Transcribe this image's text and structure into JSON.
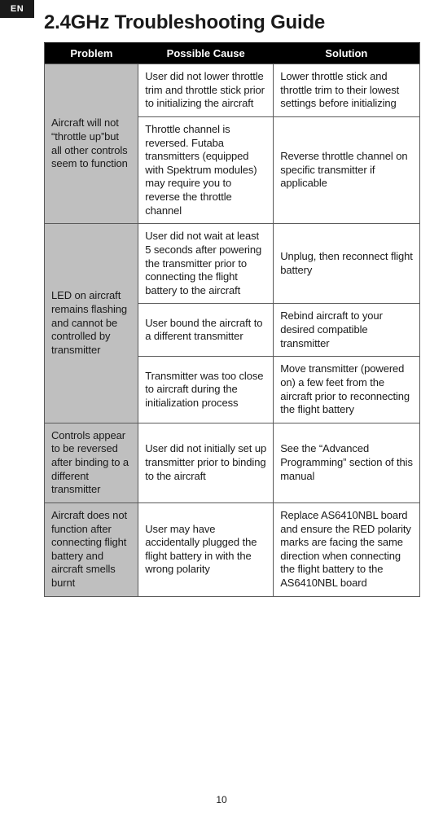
{
  "lang_tab": "EN",
  "title": "2.4GHz Troubleshooting Guide",
  "headers": {
    "problem": "Problem",
    "cause": "Possible Cause",
    "solution": "Solution"
  },
  "rows": [
    {
      "problem": "Aircraft will not “throttle up”but all other controls seem to function",
      "sub": [
        {
          "cause": "User did not lower throttle trim and throttle stick prior to initializing the aircraft",
          "solution": "Lower throttle stick and throttle trim to their lowest settings before initializing"
        },
        {
          "cause": "Throttle channel is reversed. Futaba transmitters (equipped with Spektrum modules) may require you to reverse the throttle channel",
          "solution": "Reverse throttle channel on specific transmitter if applicable"
        }
      ]
    },
    {
      "problem": "LED on aircraft remains flashing and cannot be controlled by transmitter",
      "sub": [
        {
          "cause": "User did not wait at least 5 seconds after powering the transmitter prior to connecting the flight battery to the aircraft",
          "solution": "Unplug, then reconnect flight battery"
        },
        {
          "cause": "User bound the aircraft to a different transmitter",
          "solution": "Rebind aircraft to your desired compatible transmitter"
        },
        {
          "cause": "Transmitter was too close to aircraft during the initialization process",
          "solution": "Move transmitter (powered on) a few feet from the aircraft prior to reconnecting the flight battery"
        }
      ]
    },
    {
      "problem": "Controls appear to be reversed after binding to a different transmitter",
      "sub": [
        {
          "cause": "User did not initially set up transmitter prior to binding to the aircraft",
          "solution": "See the “Advanced Programming” section of this manual"
        }
      ]
    },
    {
      "problem": "Aircraft does not function after connecting flight battery and aircraft smells burnt",
      "sub": [
        {
          "cause": "User may have accidentally plugged the flight battery in with the wrong polarity",
          "solution": "Replace AS6410NBL board and ensure the RED polarity marks are facing the same direction when connecting the flight battery to the AS6410NBL board"
        }
      ]
    }
  ],
  "page_number": "10"
}
